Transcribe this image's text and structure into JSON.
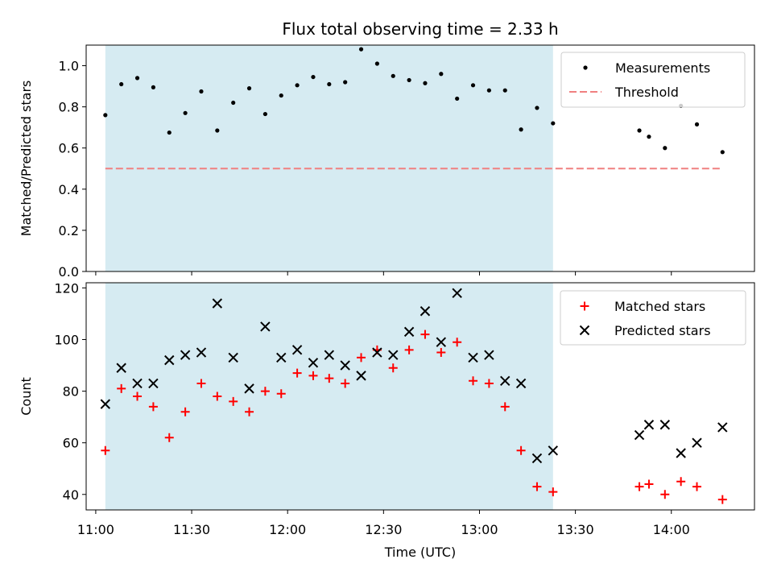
{
  "chart_data": {
    "title": "Flux total observing time = 2.33 h",
    "xlabel": "Time (UTC)",
    "xlim": [
      "10:57",
      "14:26"
    ],
    "x_ticks": [
      "11:00",
      "11:30",
      "12:00",
      "12:30",
      "13:00",
      "13:30",
      "14:00"
    ],
    "shaded_span": [
      "11:03",
      "13:23"
    ],
    "shade_color": "#add8e6",
    "panels": [
      {
        "type": "scatter",
        "ylabel": "Matched/Predicted stars",
        "ylim": [
          0,
          1.1
        ],
        "y_ticks": [
          0.0,
          0.2,
          0.4,
          0.6,
          0.8,
          1.0
        ],
        "legend_position": "top-right",
        "series": [
          {
            "name": "Measurements",
            "marker": "dot",
            "color": "#000000",
            "x": [
              "11:03",
              "11:08",
              "11:13",
              "11:18",
              "11:23",
              "11:28",
              "11:33",
              "11:38",
              "11:43",
              "11:48",
              "11:53",
              "11:58",
              "12:03",
              "12:08",
              "12:13",
              "12:18",
              "12:23",
              "12:28",
              "12:33",
              "12:38",
              "12:43",
              "12:48",
              "12:53",
              "12:58",
              "13:03",
              "13:08",
              "13:13",
              "13:18",
              "13:23",
              "13:50",
              "13:53",
              "13:58",
              "14:03",
              "14:08",
              "14:16"
            ],
            "y": [
              0.76,
              0.91,
              0.94,
              0.895,
              0.675,
              0.77,
              0.875,
              0.685,
              0.82,
              0.89,
              0.765,
              0.855,
              0.905,
              0.945,
              0.91,
              0.92,
              1.08,
              1.01,
              0.95,
              0.93,
              0.915,
              0.96,
              0.84,
              0.905,
              0.88,
              0.88,
              0.69,
              0.795,
              0.72,
              0.685,
              0.655,
              0.6,
              0.805,
              0.715,
              0.58
            ]
          },
          {
            "name": "Threshold",
            "marker": "dashed-line",
            "color": "#f08080",
            "x": [
              "11:03",
              "14:16"
            ],
            "y": [
              0.5,
              0.5
            ]
          }
        ]
      },
      {
        "type": "scatter",
        "ylabel": "Count",
        "ylim": [
          34,
          122
        ],
        "y_ticks": [
          40,
          60,
          80,
          100,
          120
        ],
        "legend_position": "top-right",
        "series": [
          {
            "name": "Matched stars",
            "marker": "plus",
            "color": "#ff0000",
            "x": [
              "11:03",
              "11:08",
              "11:13",
              "11:18",
              "11:23",
              "11:28",
              "11:33",
              "11:38",
              "11:43",
              "11:48",
              "11:53",
              "11:58",
              "12:03",
              "12:08",
              "12:13",
              "12:18",
              "12:23",
              "12:28",
              "12:33",
              "12:38",
              "12:43",
              "12:48",
              "12:53",
              "12:58",
              "13:03",
              "13:08",
              "13:13",
              "13:18",
              "13:23",
              "13:50",
              "13:53",
              "13:58",
              "14:03",
              "14:08",
              "14:16"
            ],
            "y": [
              57,
              81,
              78,
              74,
              62,
              72,
              83,
              78,
              76,
              72,
              80,
              79,
              87,
              86,
              85,
              83,
              93,
              96,
              89,
              96,
              102,
              95,
              99,
              84,
              83,
              74,
              57,
              43,
              41,
              43,
              44,
              40,
              45,
              43,
              38
            ]
          },
          {
            "name": "Predicted stars",
            "marker": "x",
            "color": "#000000",
            "x": [
              "11:03",
              "11:08",
              "11:13",
              "11:18",
              "11:23",
              "11:28",
              "11:33",
              "11:38",
              "11:43",
              "11:48",
              "11:53",
              "11:58",
              "12:03",
              "12:08",
              "12:13",
              "12:18",
              "12:23",
              "12:28",
              "12:33",
              "12:38",
              "12:43",
              "12:48",
              "12:53",
              "12:58",
              "13:03",
              "13:08",
              "13:13",
              "13:18",
              "13:23",
              "13:50",
              "13:53",
              "13:58",
              "14:03",
              "14:08",
              "14:16"
            ],
            "y": [
              75,
              89,
              83,
              83,
              92,
              94,
              95,
              114,
              93,
              81,
              105,
              93,
              96,
              91,
              94,
              90,
              86,
              95,
              94,
              103,
              111,
              99,
              118,
              93,
              94,
              84,
              83,
              54,
              57,
              63,
              67,
              67,
              56,
              60,
              66
            ]
          }
        ]
      }
    ]
  }
}
